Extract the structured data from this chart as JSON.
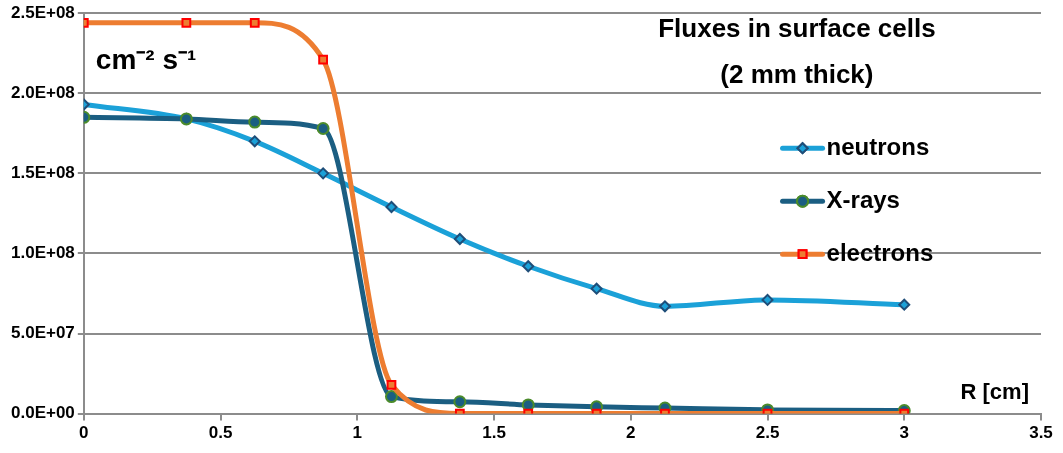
{
  "chart_data": {
    "type": "line",
    "title": "Fluxes in surface cells",
    "subtitle": "(2 mm thick)",
    "xlabel": "R [cm]",
    "annotations": [
      "cm⁻² s⁻¹"
    ],
    "x": [
      0,
      0.375,
      0.625,
      0.875,
      1.125,
      1.375,
      1.625,
      1.875,
      2.125,
      2.5,
      3
    ],
    "series": [
      {
        "name": "neutrons",
        "color": "#1ba1d8",
        "marker": "diamond",
        "values": [
          193000000,
          184000000,
          170000000,
          150000000,
          129000000,
          109000000,
          92000000,
          78000000,
          67000000,
          71000000,
          68000000
        ]
      },
      {
        "name": "X-rays",
        "color": "#1b5e82",
        "marker": "circle",
        "values": [
          185000000,
          184000000,
          182000000,
          178000000,
          10600000,
          7400000,
          5400000,
          4200000,
          3500000,
          2300000,
          1900000
        ]
      },
      {
        "name": "electrons",
        "color": "#ed7d31",
        "marker": "square",
        "values": [
          244000000,
          244000000,
          244000000,
          221000000,
          18000000,
          0,
          0,
          0,
          0,
          0,
          0
        ]
      }
    ],
    "xlim": [
      0,
      3.5
    ],
    "xticks": [
      0,
      0.5,
      1,
      1.5,
      2,
      2.5,
      3,
      3.5
    ],
    "ylim": [
      0,
      250000000
    ],
    "yticks": [
      {
        "value": 0,
        "label": "0.0E+00"
      },
      {
        "value": 50000000,
        "label": "5.0E+07"
      },
      {
        "value": 100000000,
        "label": "1.0E+08"
      },
      {
        "value": 150000000,
        "label": "1.5E+08"
      },
      {
        "value": 200000000,
        "label": "2.0E+08"
      },
      {
        "value": 250000000,
        "label": "2.5E+08"
      }
    ],
    "grid": "y",
    "legend": "right"
  }
}
